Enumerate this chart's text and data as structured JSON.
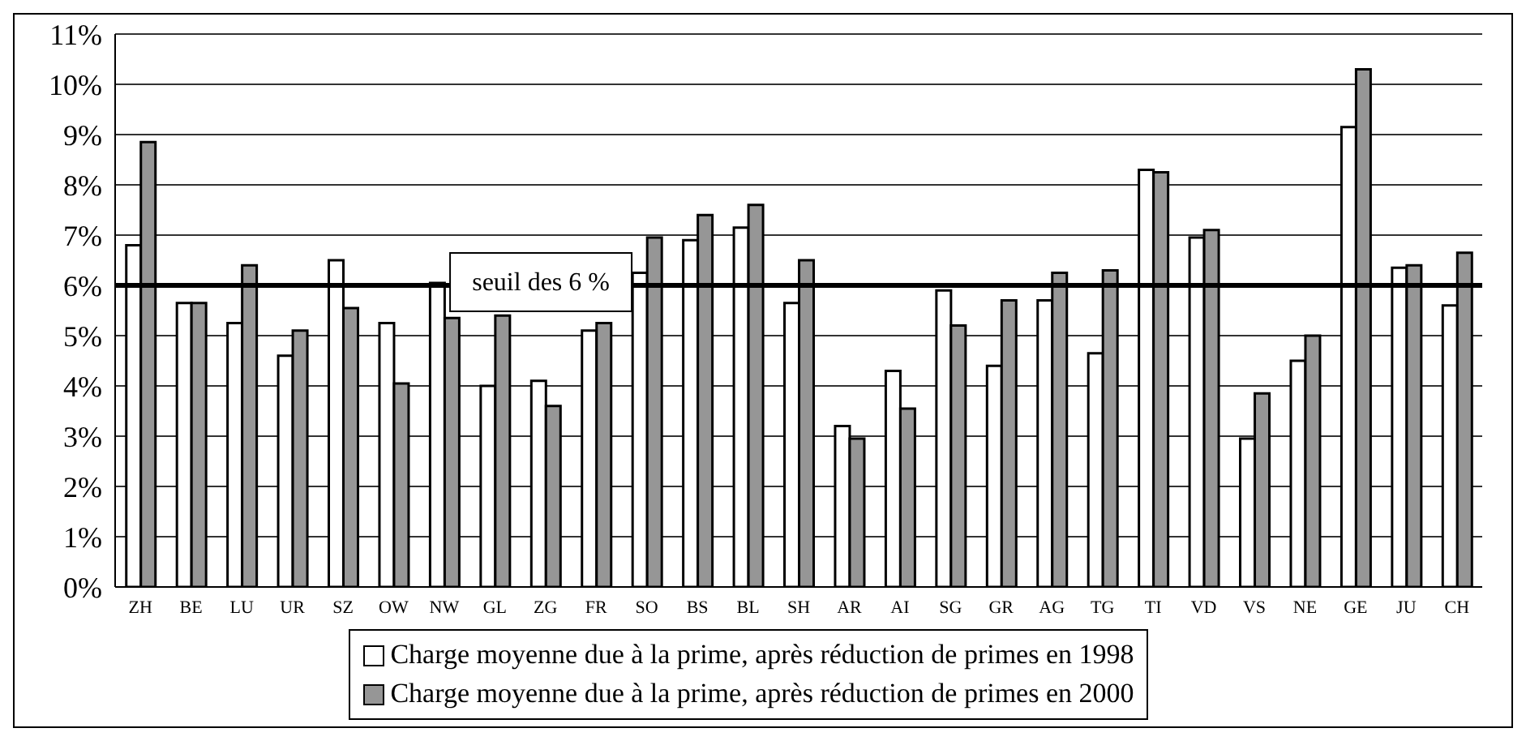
{
  "chart_data": {
    "type": "bar",
    "categories": [
      "ZH",
      "BE",
      "LU",
      "UR",
      "SZ",
      "OW",
      "NW",
      "GL",
      "ZG",
      "FR",
      "SO",
      "BS",
      "BL",
      "SH",
      "AR",
      "AI",
      "SG",
      "GR",
      "AG",
      "TG",
      "TI",
      "VD",
      "VS",
      "NE",
      "GE",
      "JU",
      "CH"
    ],
    "series": [
      {
        "name": "Charge moyenne due à la prime, après réduction de primes en 1998",
        "color": "#ffffff",
        "values": [
          6.8,
          5.65,
          5.25,
          4.6,
          6.5,
          5.25,
          6.05,
          4.0,
          4.1,
          5.1,
          6.25,
          6.9,
          7.15,
          5.65,
          3.2,
          4.3,
          5.9,
          4.4,
          5.7,
          4.65,
          8.3,
          6.95,
          2.95,
          4.5,
          9.15,
          6.35,
          5.6
        ]
      },
      {
        "name": "Charge moyenne due à la prime, après réduction de primes en 2000",
        "color": "#969696",
        "values": [
          8.85,
          5.65,
          6.4,
          5.1,
          5.55,
          4.05,
          5.35,
          5.4,
          3.6,
          5.25,
          6.95,
          7.4,
          7.6,
          6.5,
          2.95,
          3.55,
          5.2,
          5.7,
          6.25,
          6.3,
          8.25,
          7.1,
          3.85,
          5.0,
          10.3,
          6.4,
          6.65
        ]
      }
    ],
    "ylim": [
      0,
      11
    ],
    "yticks": [
      {
        "value": 0,
        "label": "0%"
      },
      {
        "value": 1,
        "label": "1%"
      },
      {
        "value": 2,
        "label": "2%"
      },
      {
        "value": 3,
        "label": "3%"
      },
      {
        "value": 4,
        "label": "4%"
      },
      {
        "value": 5,
        "label": "5%"
      },
      {
        "value": 6,
        "label": "6%"
      },
      {
        "value": 7,
        "label": "7%"
      },
      {
        "value": 8,
        "label": "8%"
      },
      {
        "value": 9,
        "label": "9%"
      },
      {
        "value": 10,
        "label": "10%"
      },
      {
        "value": 11,
        "label": "11%"
      }
    ],
    "grid": "y",
    "legend": "bottom",
    "ref_lines": [
      {
        "axis": "y",
        "value": 6,
        "label": "seuil des 6 %",
        "color": "#000000"
      }
    ]
  }
}
